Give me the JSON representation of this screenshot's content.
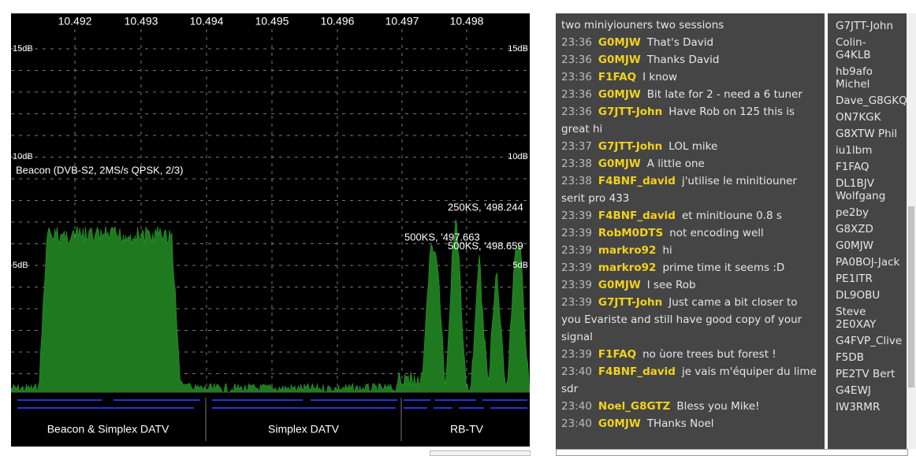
{
  "spectrum": {
    "freq_labels": [
      "10.492",
      "10.493",
      "10.494",
      "10.495",
      "10.496",
      "10.497",
      "10.498"
    ],
    "db_labels": [
      "15dB",
      "10dB",
      "5dB"
    ],
    "db_labels_right": [
      "15dB",
      "10dB",
      "5dB"
    ],
    "beacon_label": "Beacon (DVB-S2, 2MS/s QPSK, 2/3)",
    "annotations": [
      "250KS, '498.244",
      "500KS, '497.663",
      "500KS, '498.659"
    ],
    "bands": [
      "Beacon & Simplex DATV",
      "Simplex DATV",
      "RB-TV"
    ]
  },
  "chat": {
    "partial": "two miniyiouners two sessions",
    "messages": [
      {
        "time": "23:36",
        "name": "G0MJW",
        "text": "That's David"
      },
      {
        "time": "23:36",
        "name": "G0MJW",
        "text": "Thanks David"
      },
      {
        "time": "23:36",
        "name": "F1FAQ",
        "text": "I know"
      },
      {
        "time": "23:36",
        "name": "G0MJW",
        "text": "Bit late for 2 - need a 6 tuner"
      },
      {
        "time": "23:36",
        "name": "G7JTT-John",
        "text": "Have Rob on 125 this is great hi"
      },
      {
        "time": "23:37",
        "name": "G7JTT-John",
        "text": "LOL mike"
      },
      {
        "time": "23:38",
        "name": "G0MJW",
        "text": "A little one"
      },
      {
        "time": "23:38",
        "name": "F4BNF_david",
        "text": "j'utilise le minitiouner serit pro 433"
      },
      {
        "time": "23:39",
        "name": "F4BNF_david",
        "text": "et minitioune 0.8 s"
      },
      {
        "time": "23:39",
        "name": "RobM0DTS",
        "text": "not encoding well"
      },
      {
        "time": "23:39",
        "name": "markro92",
        "text": "hi"
      },
      {
        "time": "23:39",
        "name": "markro92",
        "text": "prime time it seems :D"
      },
      {
        "time": "23:39",
        "name": "G0MJW",
        "text": "I see Rob"
      },
      {
        "time": "23:39",
        "name": "G7JTT-John",
        "text": "Just came a bit closer to you Evariste and still have good copy of your signal"
      },
      {
        "time": "23:39",
        "name": "F1FAQ",
        "text": "no ùore trees but forest !"
      },
      {
        "time": "23:40",
        "name": "F4BNF_david",
        "text": "je vais m'équiper du lime sdr"
      },
      {
        "time": "23:40",
        "name": "Noel_G8GTZ",
        "text": "Bless you Mike!"
      },
      {
        "time": "23:40",
        "name": "G0MJW",
        "text": "THanks Noel"
      }
    ]
  },
  "users": [
    "G7JTT-John",
    "Colin-G4KLB",
    "hb9afo Michel",
    "Dave_G8GKQ",
    "ON7KGK",
    "G8XTW Phil",
    "iu1lbm",
    "F1FAQ",
    "DL1BJV Wolfgang",
    "pe2by",
    "G8XZD",
    "G0MJW",
    "PA0BOJ-Jack",
    "PE1ITR",
    "DL9OBU",
    "Steve 2E0XAY",
    "G4FVP_Clive",
    "F5DB",
    "PE2TV Bert",
    "G4EWJ",
    "IW3RMR"
  ]
}
